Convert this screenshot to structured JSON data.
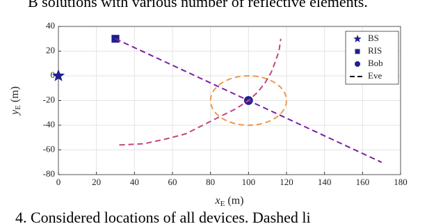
{
  "header_text": "B solutions with various number of reflective elements.",
  "caption": "4.   Considered locations of all devices.   Dashed li",
  "chart_data": {
    "type": "scatter",
    "xlabel": "x",
    "xlabel_sub": "E",
    "xlabel_unit": "(m)",
    "ylabel": "y",
    "ylabel_sub": "E",
    "ylabel_unit": "(m)",
    "xlim": [
      0,
      180
    ],
    "xticks": [
      0,
      20,
      40,
      60,
      80,
      100,
      120,
      140,
      160,
      180
    ],
    "ylim": [
      -80,
      40
    ],
    "yticks": [
      -80,
      -60,
      -40,
      -20,
      0,
      20,
      40
    ],
    "grid": true,
    "legend": "upper right",
    "series": [
      {
        "name": "BS",
        "marker": "star",
        "color": "#1f1f8f",
        "x": [
          0
        ],
        "values": [
          0
        ]
      },
      {
        "name": "RIS",
        "marker": "square",
        "color": "#1f1f8f",
        "x": [
          30
        ],
        "values": [
          30
        ]
      },
      {
        "name": "Bob",
        "marker": "circle",
        "color": "#1f1f8f",
        "x": [
          100
        ],
        "values": [
          -20
        ]
      },
      {
        "name": "Eve",
        "marker": "dashed",
        "color": "#000000",
        "piece_colors": [
          "#7a1fa2",
          "#c2457e"
        ],
        "x": [
          30,
          170,
          null,
          32,
          45,
          57,
          67,
          76,
          85,
          93,
          100,
          105,
          109,
          112,
          114,
          116,
          117
        ],
        "values": [
          30,
          -70,
          null,
          -56,
          -55,
          -51,
          -47,
          -40,
          -33,
          -27,
          -20,
          -13,
          -5,
          3,
          11,
          20,
          30
        ]
      }
    ],
    "eve_circle": {
      "cx": 100,
      "cy": -20,
      "r": 20,
      "color": "#f0984a"
    }
  }
}
